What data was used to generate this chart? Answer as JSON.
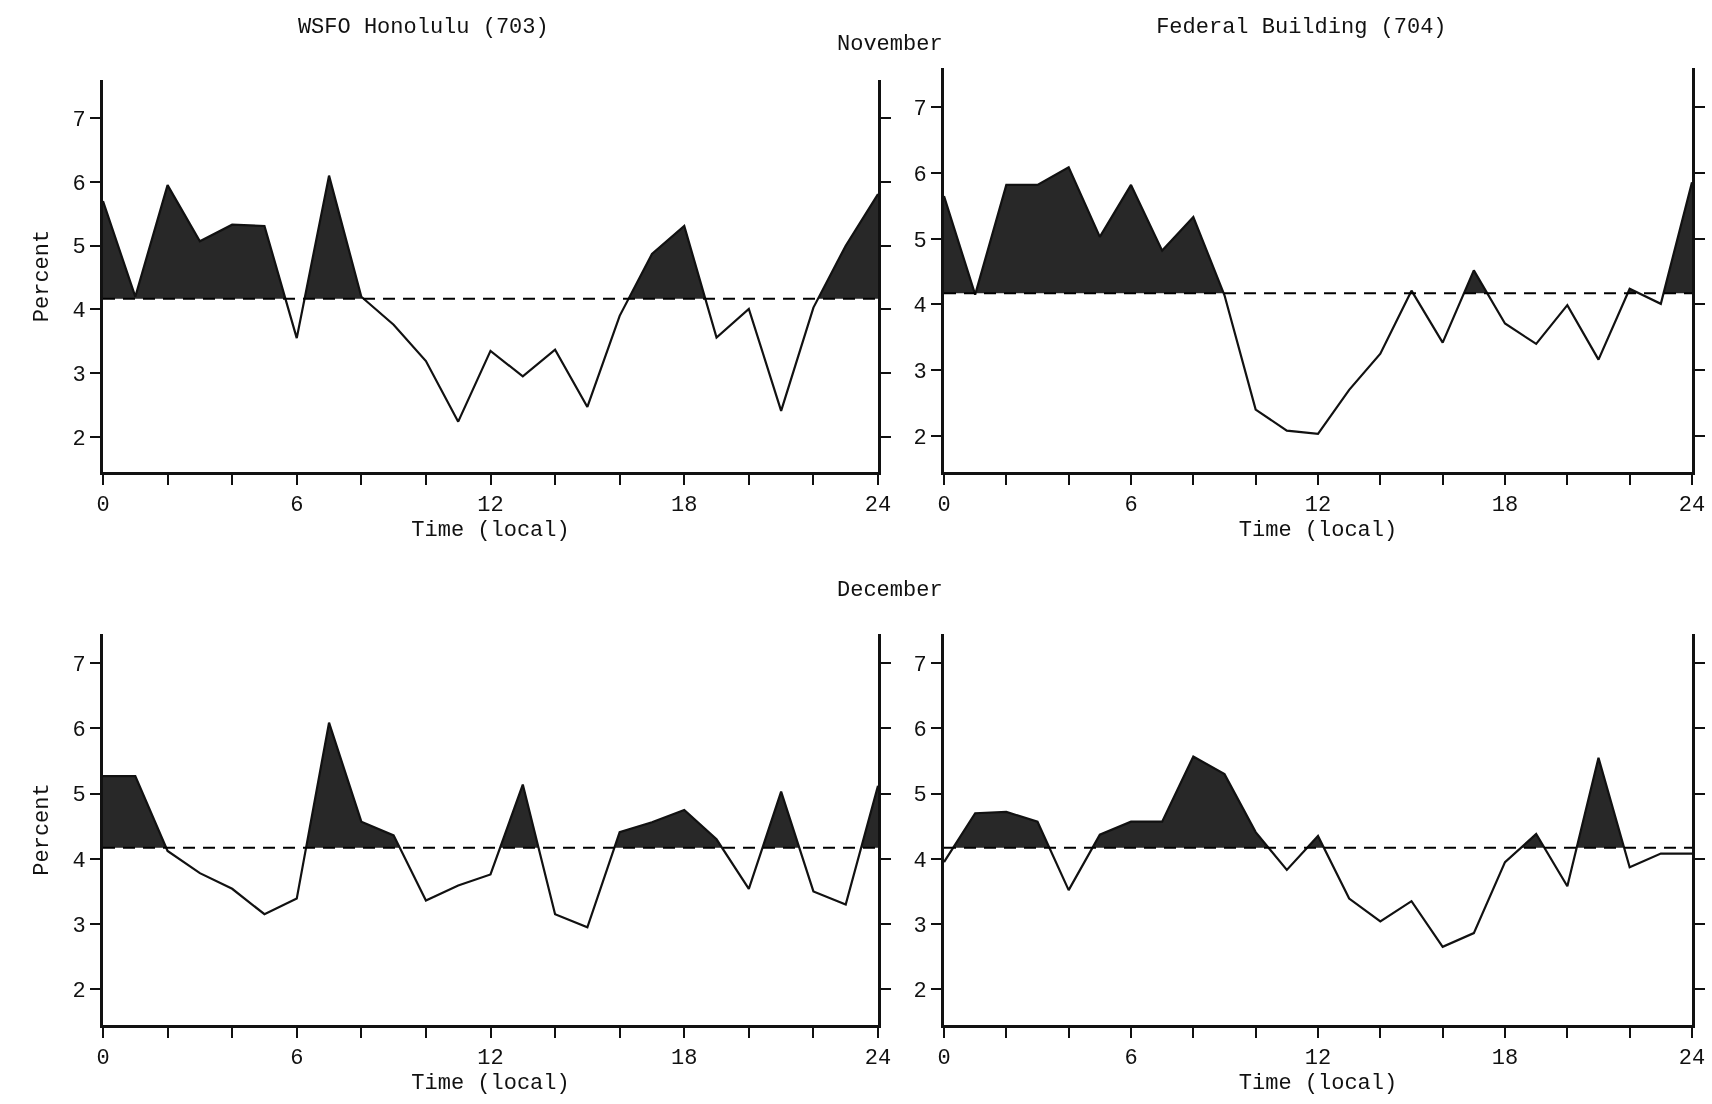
{
  "chart_data": [
    {
      "type": "line",
      "title": "WSFO Honolulu (703)",
      "annotations": [
        "November"
      ],
      "xlabel": "Time (local)",
      "ylabel": "Percent",
      "x": [
        0,
        1,
        2,
        3,
        4,
        5,
        6,
        7,
        8,
        9,
        10,
        11,
        12,
        13,
        14,
        15,
        16,
        17,
        18,
        19,
        20,
        21,
        22,
        23,
        24
      ],
      "series": [
        {
          "color": "#111111",
          "values": [
            5.7,
            4.2,
            5.95,
            5.07,
            5.33,
            5.31,
            3.55,
            6.1,
            4.2,
            3.76,
            3.19,
            2.24,
            3.35,
            2.95,
            3.37,
            2.47,
            3.9,
            4.87,
            5.31,
            3.56,
            4.01,
            2.41,
            4.03,
            5.0,
            5.81
          ]
        }
      ],
      "ref_lines": [
        {
          "axis": "y",
          "value": 4.17,
          "color": "#000000",
          "line_style": "dashed"
        }
      ],
      "xlim": [
        0,
        24
      ],
      "ylim": [
        1.45,
        7.6
      ],
      "xticks": [
        0,
        {
          "value": 2,
          "label": null
        },
        {
          "value": 4,
          "label": null
        },
        6,
        {
          "value": 8,
          "label": null
        },
        {
          "value": 10,
          "label": null
        },
        12,
        {
          "value": 14,
          "label": null
        },
        {
          "value": 16,
          "label": null
        },
        18,
        {
          "value": 20,
          "label": null
        },
        {
          "value": 22,
          "label": null
        },
        24
      ],
      "yticks": [
        2,
        3,
        4,
        5,
        6,
        7
      ],
      "grid": false,
      "marker": "none",
      "line_style": "solid"
    },
    {
      "type": "line",
      "title": "Federal Building (704)",
      "xlabel": "Time (local)",
      "x": [
        0,
        1,
        2,
        3,
        4,
        5,
        6,
        7,
        8,
        9,
        10,
        11,
        12,
        13,
        14,
        15,
        16,
        17,
        18,
        19,
        20,
        21,
        22,
        23,
        24
      ],
      "series": [
        {
          "color": "#111111",
          "values": [
            5.65,
            4.15,
            5.82,
            5.82,
            6.09,
            5.03,
            5.82,
            4.82,
            5.33,
            4.14,
            2.4,
            2.08,
            2.03,
            2.7,
            3.25,
            4.21,
            3.42,
            4.52,
            3.71,
            3.4,
            3.99,
            3.16,
            4.24,
            4.01,
            5.86
          ]
        }
      ],
      "ref_lines": [
        {
          "axis": "y",
          "value": 4.17,
          "color": "#000000",
          "line_style": "dashed"
        }
      ],
      "xlim": [
        0,
        24
      ],
      "ylim": [
        1.45,
        7.6
      ],
      "xticks": [
        0,
        {
          "value": 2,
          "label": null
        },
        {
          "value": 4,
          "label": null
        },
        6,
        {
          "value": 8,
          "label": null
        },
        {
          "value": 10,
          "label": null
        },
        12,
        {
          "value": 14,
          "label": null
        },
        {
          "value": 16,
          "label": null
        },
        18,
        {
          "value": 20,
          "label": null
        },
        {
          "value": 22,
          "label": null
        },
        24
      ],
      "yticks": [
        2,
        3,
        4,
        5,
        6,
        7
      ],
      "grid": false,
      "marker": "none",
      "line_style": "solid"
    },
    {
      "type": "line",
      "annotations": [
        "December"
      ],
      "xlabel": "Time (local)",
      "ylabel": "Percent",
      "x": [
        0,
        1,
        2,
        3,
        4,
        5,
        6,
        7,
        8,
        9,
        10,
        11,
        12,
        13,
        14,
        15,
        16,
        17,
        18,
        19,
        20,
        21,
        22,
        23,
        24
      ],
      "series": [
        {
          "color": "#111111",
          "values": [
            5.27,
            5.27,
            4.12,
            3.78,
            3.54,
            3.15,
            3.39,
            6.09,
            4.57,
            4.36,
            3.36,
            3.59,
            3.76,
            5.14,
            3.15,
            2.95,
            4.41,
            4.56,
            4.75,
            4.3,
            3.54,
            5.03,
            3.5,
            3.3,
            5.12
          ]
        }
      ],
      "ref_lines": [
        {
          "axis": "y",
          "value": 4.17,
          "color": "#000000",
          "line_style": "dashed"
        }
      ],
      "xlim": [
        0,
        24
      ],
      "ylim": [
        1.45,
        7.45
      ],
      "xticks": [
        0,
        {
          "value": 2,
          "label": null
        },
        {
          "value": 4,
          "label": null
        },
        6,
        {
          "value": 8,
          "label": null
        },
        {
          "value": 10,
          "label": null
        },
        12,
        {
          "value": 14,
          "label": null
        },
        {
          "value": 16,
          "label": null
        },
        18,
        {
          "value": 20,
          "label": null
        },
        {
          "value": 22,
          "label": null
        },
        24
      ],
      "yticks": [
        2,
        3,
        4,
        5,
        6,
        7
      ],
      "grid": false,
      "marker": "none",
      "line_style": "solid"
    },
    {
      "type": "line",
      "xlabel": "Time (local)",
      "x": [
        0,
        1,
        2,
        3,
        4,
        5,
        6,
        7,
        8,
        9,
        10,
        11,
        12,
        13,
        14,
        15,
        16,
        17,
        18,
        19,
        20,
        21,
        22,
        23,
        24
      ],
      "series": [
        {
          "color": "#111111",
          "values": [
            3.95,
            4.7,
            4.72,
            4.57,
            3.52,
            4.37,
            4.57,
            4.57,
            5.57,
            5.3,
            4.41,
            3.83,
            4.35,
            3.39,
            3.04,
            3.35,
            2.65,
            2.86,
            3.95,
            4.38,
            3.58,
            5.55,
            3.87,
            4.08,
            4.08
          ]
        }
      ],
      "ref_lines": [
        {
          "axis": "y",
          "value": 4.17,
          "color": "#000000",
          "line_style": "dashed"
        }
      ],
      "xlim": [
        0,
        24
      ],
      "ylim": [
        1.45,
        7.45
      ],
      "xticks": [
        0,
        {
          "value": 2,
          "label": null
        },
        {
          "value": 4,
          "label": null
        },
        6,
        {
          "value": 8,
          "label": null
        },
        {
          "value": 10,
          "label": null
        },
        12,
        {
          "value": 14,
          "label": null
        },
        {
          "value": 16,
          "label": null
        },
        18,
        {
          "value": 20,
          "label": null
        },
        {
          "value": 22,
          "label": null
        },
        24
      ],
      "yticks": [
        2,
        3,
        4,
        5,
        6,
        7
      ],
      "grid": false,
      "marker": "none",
      "line_style": "solid"
    }
  ]
}
